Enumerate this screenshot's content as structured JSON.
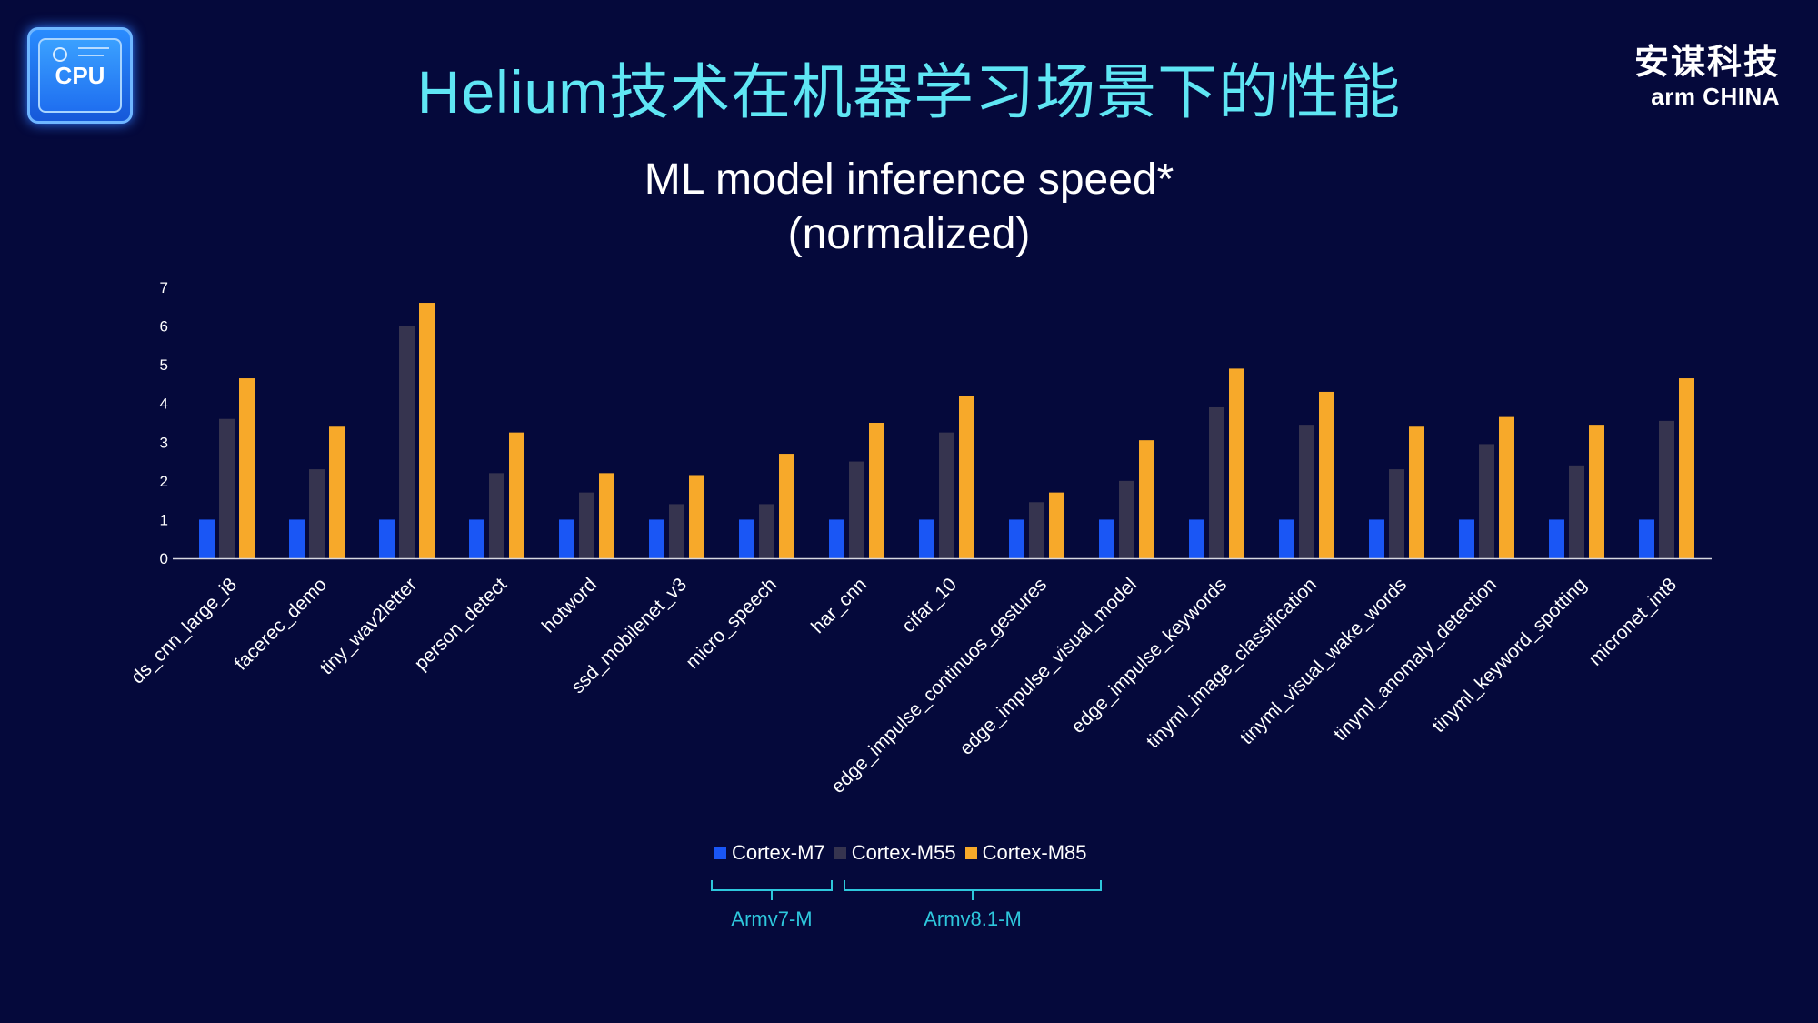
{
  "header": {
    "title": "Helium技术在机器学习场景下的性能",
    "badge_text": "CPU",
    "brand_cn": "安谋科技",
    "brand_en": "arm CHINA"
  },
  "chart_data": {
    "type": "bar",
    "title": "ML model inference speed*",
    "subtitle": "(normalized)",
    "categories": [
      "ds_cnn_large_i8",
      "facerec_demo",
      "tiny_wav2letter",
      "person_detect",
      "hotword",
      "ssd_mobilenet_v3",
      "micro_speech",
      "har_cnn",
      "cifar_10",
      "edge_impulse_continuos_gestures",
      "edge_impulse_visual_model",
      "edge_impulse_keywords",
      "tinyml_image_classification",
      "tinyml_visual_wake_words",
      "tinyml_anomaly_detection",
      "tinyml_keyword_spotting",
      "micronet_int8"
    ],
    "series": [
      {
        "name": "Cortex-M7",
        "color": "#1a56f5",
        "values": [
          1,
          1,
          1,
          1,
          1,
          1,
          1,
          1,
          1,
          1,
          1,
          1,
          1,
          1,
          1,
          1,
          1
        ]
      },
      {
        "name": "Cortex-M55",
        "color": "#36344f",
        "values": [
          3.6,
          2.3,
          6.0,
          2.2,
          1.7,
          1.4,
          1.4,
          2.5,
          3.25,
          1.45,
          2.0,
          3.9,
          3.45,
          2.3,
          2.95,
          2.4,
          3.55
        ]
      },
      {
        "name": "Cortex-M85",
        "color": "#f7a92a",
        "values": [
          4.65,
          3.4,
          6.6,
          3.25,
          2.2,
          2.15,
          2.7,
          3.5,
          4.2,
          1.7,
          3.05,
          4.9,
          4.3,
          3.4,
          3.65,
          3.45,
          4.65
        ]
      }
    ],
    "ylim": [
      0,
      7
    ],
    "yticks": [
      0,
      1,
      2,
      3,
      4,
      5,
      6,
      7
    ],
    "grid": false,
    "legend_position": "bottom"
  },
  "legend_groups": [
    {
      "label": "Armv7-M"
    },
    {
      "label": "Armv8.1-M"
    }
  ],
  "colors": {
    "background": "#05093b",
    "title": "#5fe6f4",
    "bracket": "#2ec7dc"
  }
}
